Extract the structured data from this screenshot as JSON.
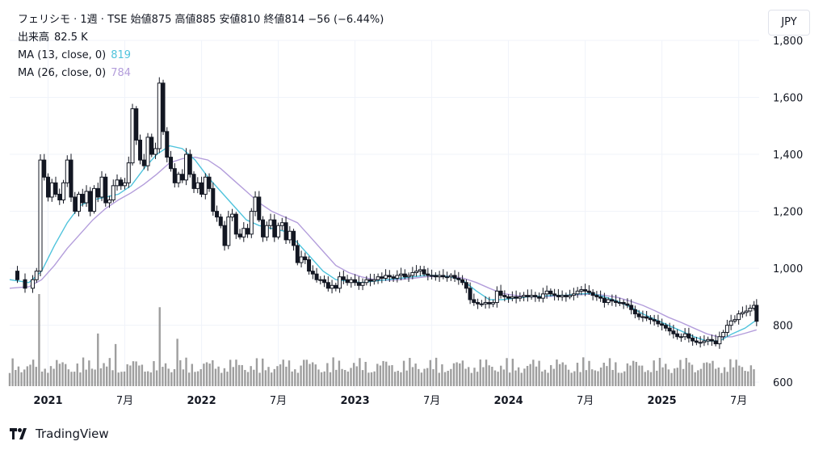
{
  "header": {
    "symbol": "フェリシモ",
    "interval": "1週",
    "exchange": "TSE",
    "ohlc_text": "フェリシモ · 1週 · TSE  始値875  高値885  安値810  終値814  −56 (−6.44%)",
    "volume_label": "出来高",
    "volume_value": "82.5 K",
    "ma13_label": "MA (13, close, 0)",
    "ma13_value": "819",
    "ma26_label": "MA (26, close, 0)",
    "ma26_value": "784"
  },
  "currency": "JPY",
  "brand": "TradingView",
  "colors": {
    "up": "#131722",
    "down": "#131722",
    "ma13": "#4fc3dc",
    "ma26": "#b39ddb",
    "volume": "#9e9e9e",
    "grid": "#f0f3fa"
  },
  "chart_data": {
    "type": "candlestick",
    "y_ticks": [
      "1,800",
      "1,600",
      "1,400",
      "1,200",
      "1,000",
      "800",
      "600"
    ],
    "y_tick_values": [
      1800,
      1600,
      1400,
      1200,
      1000,
      800,
      600
    ],
    "x_ticks": [
      {
        "label": "2021",
        "month": 0
      },
      {
        "label": "7月",
        "month": 6
      },
      {
        "label": "2022",
        "month": 12
      },
      {
        "label": "7月",
        "month": 18
      },
      {
        "label": "2023",
        "month": 24
      },
      {
        "label": "7月",
        "month": 30
      },
      {
        "label": "2024",
        "month": 36
      },
      {
        "label": "7月",
        "month": 42
      },
      {
        "label": "2025",
        "month": 48
      },
      {
        "label": "7月",
        "month": 54
      }
    ],
    "x_range_months": [
      -3,
      55.6
    ],
    "ylim": [
      575,
      1800
    ],
    "close_path": [
      [
        -3.0,
        990
      ],
      [
        -2.4,
        960
      ],
      [
        -1.8,
        930
      ],
      [
        -1.2,
        960
      ],
      [
        -0.9,
        990
      ],
      [
        -0.6,
        1380
      ],
      [
        -0.3,
        1320
      ],
      [
        0.0,
        1250
      ],
      [
        0.3,
        1300
      ],
      [
        0.6,
        1260
      ],
      [
        0.9,
        1240
      ],
      [
        1.2,
        1300
      ],
      [
        1.5,
        1380
      ],
      [
        1.8,
        1250
      ],
      [
        2.1,
        1200
      ],
      [
        2.4,
        1260
      ],
      [
        2.7,
        1230
      ],
      [
        3.0,
        1270
      ],
      [
        3.3,
        1200
      ],
      [
        3.6,
        1280
      ],
      [
        3.9,
        1250
      ],
      [
        4.2,
        1320
      ],
      [
        4.5,
        1230
      ],
      [
        4.8,
        1240
      ],
      [
        5.1,
        1290
      ],
      [
        5.4,
        1310
      ],
      [
        5.7,
        1290
      ],
      [
        6.0,
        1300
      ],
      [
        6.3,
        1370
      ],
      [
        6.6,
        1560
      ],
      [
        6.9,
        1450
      ],
      [
        7.2,
        1380
      ],
      [
        7.5,
        1360
      ],
      [
        7.8,
        1460
      ],
      [
        8.1,
        1400
      ],
      [
        8.4,
        1420
      ],
      [
        8.7,
        1650
      ],
      [
        9.0,
        1480
      ],
      [
        9.3,
        1390
      ],
      [
        9.6,
        1350
      ],
      [
        9.9,
        1300
      ],
      [
        10.2,
        1330
      ],
      [
        10.5,
        1310
      ],
      [
        10.8,
        1400
      ],
      [
        11.1,
        1330
      ],
      [
        11.4,
        1280
      ],
      [
        11.7,
        1300
      ],
      [
        12.0,
        1260
      ],
      [
        12.3,
        1320
      ],
      [
        12.6,
        1280
      ],
      [
        12.9,
        1200
      ],
      [
        13.2,
        1180
      ],
      [
        13.5,
        1150
      ],
      [
        13.8,
        1080
      ],
      [
        14.1,
        1180
      ],
      [
        14.4,
        1190
      ],
      [
        14.7,
        1120
      ],
      [
        15.0,
        1110
      ],
      [
        15.3,
        1140
      ],
      [
        15.6,
        1120
      ],
      [
        15.9,
        1200
      ],
      [
        16.2,
        1250
      ],
      [
        16.5,
        1170
      ],
      [
        16.8,
        1110
      ],
      [
        17.1,
        1150
      ],
      [
        17.4,
        1170
      ],
      [
        17.7,
        1110
      ],
      [
        18.0,
        1150
      ],
      [
        18.3,
        1160
      ],
      [
        18.6,
        1100
      ],
      [
        18.9,
        1130
      ],
      [
        19.2,
        1080
      ],
      [
        19.5,
        1020
      ],
      [
        19.8,
        1040
      ],
      [
        20.1,
        1030
      ],
      [
        20.4,
        990
      ],
      [
        20.7,
        980
      ],
      [
        21.0,
        960
      ],
      [
        21.3,
        960
      ],
      [
        21.6,
        950
      ],
      [
        21.9,
        930
      ],
      [
        22.2,
        940
      ],
      [
        22.5,
        930
      ],
      [
        22.8,
        970
      ],
      [
        23.1,
        960
      ],
      [
        23.4,
        950
      ],
      [
        23.7,
        960
      ],
      [
        24.0,
        950
      ],
      [
        24.3,
        940
      ],
      [
        24.6,
        950
      ],
      [
        24.9,
        960
      ],
      [
        25.2,
        955
      ],
      [
        25.5,
        960
      ],
      [
        25.8,
        970
      ],
      [
        26.1,
        965
      ],
      [
        26.4,
        975
      ],
      [
        26.7,
        970
      ],
      [
        27.0,
        965
      ],
      [
        27.3,
        975
      ],
      [
        27.6,
        980
      ],
      [
        27.9,
        970
      ],
      [
        28.2,
        975
      ],
      [
        28.5,
        985
      ],
      [
        28.8,
        990
      ],
      [
        29.1,
        995
      ],
      [
        29.4,
        980
      ],
      [
        29.7,
        975
      ],
      [
        30.0,
        975
      ],
      [
        30.3,
        970
      ],
      [
        30.6,
        975
      ],
      [
        30.9,
        970
      ],
      [
        31.2,
        970
      ],
      [
        31.5,
        975
      ],
      [
        31.8,
        965
      ],
      [
        32.1,
        960
      ],
      [
        32.4,
        950
      ],
      [
        32.7,
        930
      ],
      [
        33.0,
        890
      ],
      [
        33.3,
        880
      ],
      [
        33.6,
        875
      ],
      [
        33.9,
        875
      ],
      [
        34.2,
        880
      ],
      [
        34.5,
        875
      ],
      [
        34.8,
        880
      ],
      [
        35.1,
        920
      ],
      [
        35.4,
        905
      ],
      [
        35.7,
        900
      ],
      [
        36.0,
        895
      ],
      [
        36.3,
        900
      ],
      [
        36.6,
        895
      ],
      [
        36.9,
        900
      ],
      [
        37.2,
        905
      ],
      [
        37.5,
        900
      ],
      [
        37.8,
        905
      ],
      [
        38.1,
        900
      ],
      [
        38.4,
        895
      ],
      [
        38.7,
        910
      ],
      [
        39.0,
        920
      ],
      [
        39.3,
        910
      ],
      [
        39.6,
        905
      ],
      [
        39.9,
        900
      ],
      [
        40.2,
        905
      ],
      [
        40.5,
        900
      ],
      [
        40.8,
        905
      ],
      [
        41.1,
        910
      ],
      [
        41.4,
        920
      ],
      [
        41.7,
        925
      ],
      [
        42.0,
        920
      ],
      [
        42.3,
        915
      ],
      [
        42.6,
        905
      ],
      [
        42.9,
        900
      ],
      [
        43.2,
        895
      ],
      [
        43.5,
        880
      ],
      [
        43.8,
        890
      ],
      [
        44.1,
        885
      ],
      [
        44.4,
        880
      ],
      [
        44.7,
        880
      ],
      [
        45.0,
        875
      ],
      [
        45.3,
        870
      ],
      [
        45.6,
        855
      ],
      [
        45.9,
        840
      ],
      [
        46.2,
        830
      ],
      [
        46.5,
        830
      ],
      [
        46.8,
        825
      ],
      [
        47.1,
        820
      ],
      [
        47.4,
        815
      ],
      [
        47.7,
        805
      ],
      [
        48.0,
        800
      ],
      [
        48.3,
        790
      ],
      [
        48.6,
        780
      ],
      [
        48.9,
        770
      ],
      [
        49.2,
        760
      ],
      [
        49.5,
        760
      ],
      [
        49.8,
        770
      ],
      [
        50.1,
        755
      ],
      [
        50.4,
        745
      ],
      [
        50.7,
        740
      ],
      [
        51.0,
        740
      ],
      [
        51.3,
        745
      ],
      [
        51.6,
        750
      ],
      [
        51.9,
        745
      ],
      [
        52.2,
        735
      ],
      [
        52.5,
        760
      ],
      [
        52.8,
        775
      ],
      [
        53.1,
        800
      ],
      [
        53.4,
        815
      ],
      [
        53.7,
        820
      ],
      [
        54.0,
        840
      ],
      [
        54.3,
        845
      ],
      [
        54.6,
        850
      ],
      [
        54.9,
        860
      ],
      [
        55.2,
        870
      ],
      [
        55.4,
        814
      ]
    ],
    "ma13_path": [
      [
        -3.0,
        960
      ],
      [
        -1.5,
        950
      ],
      [
        -0.5,
        990
      ],
      [
        0.5,
        1080
      ],
      [
        1.5,
        1160
      ],
      [
        2.5,
        1220
      ],
      [
        3.5,
        1240
      ],
      [
        4.5,
        1250
      ],
      [
        5.5,
        1260
      ],
      [
        6.5,
        1290
      ],
      [
        7.5,
        1350
      ],
      [
        8.5,
        1400
      ],
      [
        9.5,
        1430
      ],
      [
        10.5,
        1420
      ],
      [
        11.5,
        1380
      ],
      [
        12.5,
        1320
      ],
      [
        13.5,
        1270
      ],
      [
        14.5,
        1220
      ],
      [
        15.5,
        1170
      ],
      [
        16.5,
        1150
      ],
      [
        17.5,
        1140
      ],
      [
        18.5,
        1130
      ],
      [
        19.5,
        1090
      ],
      [
        20.5,
        1040
      ],
      [
        21.5,
        990
      ],
      [
        22.5,
        960
      ],
      [
        23.5,
        955
      ],
      [
        24.5,
        950
      ],
      [
        25.5,
        955
      ],
      [
        26.5,
        960
      ],
      [
        27.5,
        965
      ],
      [
        28.5,
        970
      ],
      [
        29.5,
        975
      ],
      [
        30.5,
        975
      ],
      [
        31.5,
        970
      ],
      [
        32.5,
        955
      ],
      [
        33.5,
        920
      ],
      [
        34.5,
        890
      ],
      [
        35.5,
        890
      ],
      [
        36.5,
        895
      ],
      [
        37.5,
        900
      ],
      [
        38.5,
        902
      ],
      [
        39.5,
        905
      ],
      [
        40.5,
        905
      ],
      [
        41.5,
        910
      ],
      [
        42.5,
        912
      ],
      [
        43.5,
        900
      ],
      [
        44.5,
        885
      ],
      [
        45.5,
        865
      ],
      [
        46.5,
        840
      ],
      [
        47.5,
        820
      ],
      [
        48.5,
        800
      ],
      [
        49.5,
        780
      ],
      [
        50.5,
        760
      ],
      [
        51.5,
        745
      ],
      [
        52.5,
        745
      ],
      [
        53.5,
        770
      ],
      [
        54.5,
        790
      ],
      [
        55.4,
        819
      ]
    ],
    "ma26_path": [
      [
        -3.0,
        930
      ],
      [
        -1.5,
        935
      ],
      [
        -0.5,
        960
      ],
      [
        0.5,
        1010
      ],
      [
        1.5,
        1070
      ],
      [
        2.5,
        1120
      ],
      [
        3.5,
        1170
      ],
      [
        4.5,
        1210
      ],
      [
        5.5,
        1240
      ],
      [
        6.5,
        1265
      ],
      [
        7.5,
        1295
      ],
      [
        8.5,
        1330
      ],
      [
        9.5,
        1370
      ],
      [
        10.5,
        1385
      ],
      [
        11.5,
        1390
      ],
      [
        12.5,
        1380
      ],
      [
        13.5,
        1350
      ],
      [
        14.5,
        1310
      ],
      [
        15.5,
        1270
      ],
      [
        16.5,
        1230
      ],
      [
        17.5,
        1200
      ],
      [
        18.5,
        1180
      ],
      [
        19.5,
        1160
      ],
      [
        20.5,
        1110
      ],
      [
        21.5,
        1060
      ],
      [
        22.5,
        1010
      ],
      [
        23.5,
        985
      ],
      [
        24.5,
        970
      ],
      [
        25.5,
        960
      ],
      [
        26.5,
        958
      ],
      [
        27.5,
        960
      ],
      [
        28.5,
        965
      ],
      [
        29.5,
        970
      ],
      [
        30.5,
        972
      ],
      [
        31.5,
        972
      ],
      [
        32.5,
        965
      ],
      [
        33.5,
        950
      ],
      [
        34.5,
        930
      ],
      [
        35.5,
        912
      ],
      [
        36.5,
        905
      ],
      [
        37.5,
        900
      ],
      [
        38.5,
        900
      ],
      [
        39.5,
        902
      ],
      [
        40.5,
        905
      ],
      [
        41.5,
        907
      ],
      [
        42.5,
        910
      ],
      [
        43.5,
        905
      ],
      [
        44.5,
        898
      ],
      [
        45.5,
        885
      ],
      [
        46.5,
        870
      ],
      [
        47.5,
        850
      ],
      [
        48.5,
        828
      ],
      [
        49.5,
        810
      ],
      [
        50.5,
        790
      ],
      [
        51.5,
        770
      ],
      [
        52.5,
        758
      ],
      [
        53.5,
        760
      ],
      [
        54.5,
        772
      ],
      [
        55.4,
        784
      ]
    ],
    "volume_spikes": [
      {
        "month": -0.6,
        "level": 0.35
      },
      {
        "month": 3.8,
        "level": 0.2
      },
      {
        "month": 5.2,
        "level": 0.16
      },
      {
        "month": 8.7,
        "level": 0.3
      },
      {
        "month": 10.1,
        "level": 0.18
      },
      {
        "month": 15.2,
        "level": 0.08
      },
      {
        "month": 20.1,
        "level": 0.1
      },
      {
        "month": 50.1,
        "level": 0.09
      },
      {
        "month": 55.4,
        "level": 0.06
      }
    ]
  }
}
